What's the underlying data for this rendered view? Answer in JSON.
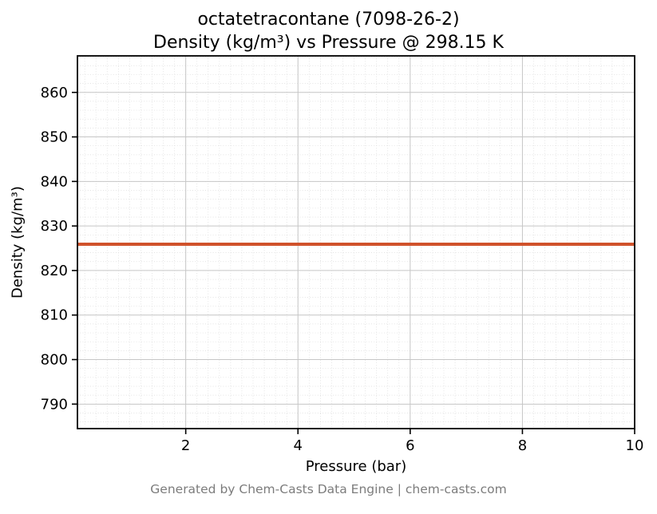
{
  "chart_data": {
    "type": "line",
    "title_line1": "octatetracontane (7098-26-2)",
    "title_line2": "Density (kg/m³) vs Pressure @ 298.15 K",
    "xlabel": "Pressure (bar)",
    "ylabel": "Density (kg/m³)",
    "xlim": [
      0.07,
      10
    ],
    "ylim": [
      784.5,
      868.2
    ],
    "x_ticks": [
      2,
      4,
      6,
      8,
      10
    ],
    "y_ticks": [
      790,
      800,
      810,
      820,
      830,
      840,
      850,
      860
    ],
    "x_minor_step": 0.2,
    "y_minor_step": 2,
    "grid": true,
    "legend": "none",
    "series": [
      {
        "name": "density-vs-pressure",
        "color": "#d0522b",
        "x": [
          0.07,
          10
        ],
        "y": [
          825.9,
          825.9
        ]
      }
    ]
  },
  "colors": {
    "grid_major": "#c6c6c6",
    "grid_minor": "#dadada",
    "frame": "#000000",
    "tick_label": "#000000",
    "footer_text": "#7c7c7c"
  },
  "footer": {
    "text": "Generated by Chem-Casts Data Engine | chem-casts.com"
  }
}
